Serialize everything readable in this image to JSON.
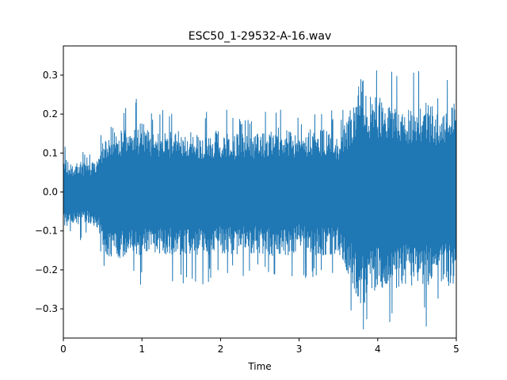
{
  "chart_data": {
    "type": "line",
    "title": "ESC50_1-29532-A-16.wav",
    "xlabel": "Time",
    "ylabel": "",
    "xlim": [
      0,
      5
    ],
    "ylim": [
      -0.375,
      0.375
    ],
    "x_ticks": [
      0,
      1,
      2,
      3,
      4,
      5
    ],
    "x_tick_labels": [
      "0",
      "1",
      "2",
      "3",
      "4",
      "5"
    ],
    "y_ticks": [
      0.3,
      0.2,
      0.1,
      0.0,
      -0.1,
      -0.2,
      -0.3
    ],
    "y_tick_labels": [
      "0.3",
      "0.2",
      "0.1",
      "0.0",
      "−0.1",
      "−0.2",
      "−0.3"
    ],
    "grid": false,
    "legend": "none",
    "line_color": "#1f77b4",
    "envelope": {
      "x": [
        0.0,
        0.1,
        0.2,
        0.3,
        0.45,
        0.5,
        0.6,
        0.8,
        1.0,
        1.2,
        1.5,
        1.8,
        2.0,
        2.2,
        2.5,
        2.8,
        3.0,
        3.2,
        3.5,
        3.6,
        3.7,
        3.8,
        3.9,
        4.0,
        4.2,
        4.4,
        4.6,
        4.8,
        5.0
      ],
      "y_max": [
        0.09,
        0.07,
        0.08,
        0.07,
        0.09,
        0.14,
        0.17,
        0.16,
        0.18,
        0.15,
        0.16,
        0.15,
        0.16,
        0.15,
        0.15,
        0.17,
        0.14,
        0.17,
        0.15,
        0.18,
        0.24,
        0.3,
        0.25,
        0.25,
        0.23,
        0.22,
        0.24,
        0.2,
        0.26
      ],
      "y_min": [
        -0.1,
        -0.08,
        -0.09,
        -0.08,
        -0.1,
        -0.15,
        -0.17,
        -0.17,
        -0.17,
        -0.16,
        -0.17,
        -0.17,
        -0.16,
        -0.16,
        -0.16,
        -0.17,
        -0.15,
        -0.17,
        -0.16,
        -0.2,
        -0.25,
        -0.3,
        -0.26,
        -0.25,
        -0.25,
        -0.24,
        -0.25,
        -0.23,
        -0.26
      ]
    },
    "duration": 5
  }
}
